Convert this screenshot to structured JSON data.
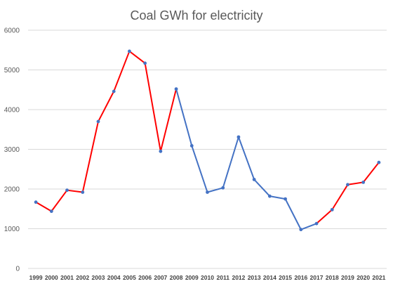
{
  "chart_data": {
    "type": "line",
    "title": "Coal GWh for electricity",
    "xlabel": "",
    "ylabel": "",
    "ylim": [
      0,
      6000
    ],
    "yticks": [
      0,
      1000,
      2000,
      3000,
      4000,
      5000,
      6000
    ],
    "grid": true,
    "legend": "none",
    "categories": [
      "1999",
      "2000",
      "2001",
      "2002",
      "2003",
      "2004",
      "2005",
      "2006",
      "2007",
      "2008",
      "2009",
      "2010",
      "2011",
      "2012",
      "2013",
      "2014",
      "2015",
      "2016",
      "2017",
      "2018",
      "2019",
      "2020",
      "2021"
    ],
    "values": [
      1670,
      1440,
      1970,
      1920,
      3700,
      4460,
      5470,
      5170,
      2950,
      4520,
      3090,
      1920,
      2030,
      3310,
      2240,
      1820,
      1750,
      980,
      1130,
      1480,
      2110,
      2170,
      2670
    ],
    "segment_colors": [
      "#ff0000",
      "#ff0000",
      "#ff0000",
      "#ff0000",
      "#ff0000",
      "#ff0000",
      "#ff0000",
      "#ff0000",
      "#ff0000",
      "#4472c4",
      "#4472c4",
      "#4472c4",
      "#4472c4",
      "#4472c4",
      "#4472c4",
      "#4472c4",
      "#4472c4",
      "#4472c4",
      "#ff0000",
      "#ff0000",
      "#ff0000",
      "#ff0000"
    ],
    "marker_color": "#4472c4"
  }
}
